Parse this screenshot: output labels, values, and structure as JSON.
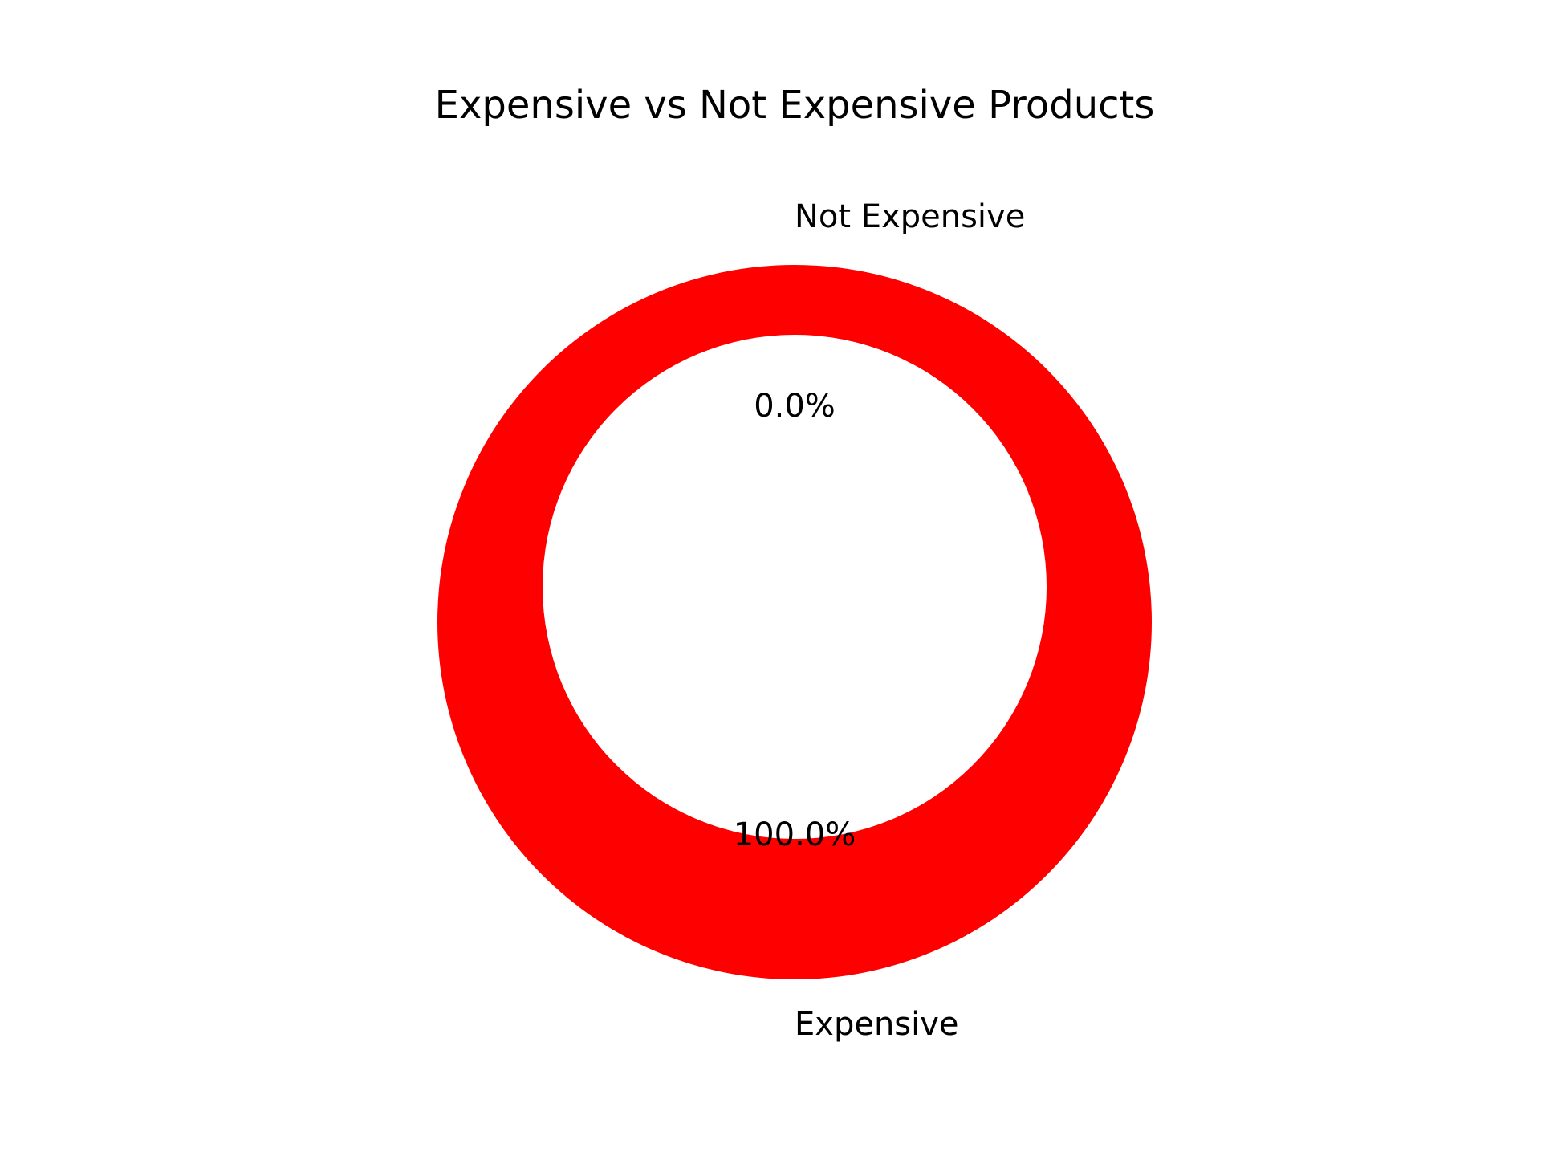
{
  "chart_data": {
    "type": "pie",
    "style": "donut",
    "title": "Expensive vs Not Expensive Products",
    "categories": [
      "Not Expensive",
      "Expensive"
    ],
    "values": [
      0.0,
      100.0
    ],
    "value_unit": "percent",
    "percent_labels": [
      "0.0%",
      "100.0%"
    ],
    "colors": [
      "#ff0000",
      "#ff0000"
    ],
    "grid": false,
    "legend": "none"
  }
}
